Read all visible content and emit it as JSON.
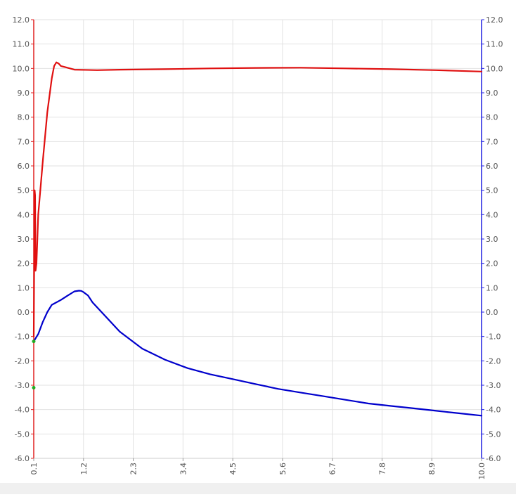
{
  "chart_data": {
    "type": "line",
    "title": "",
    "xlabel": "",
    "ylabel": "",
    "xlim": [
      0.1,
      10.0
    ],
    "ylim": [
      -6.0,
      12.0
    ],
    "y2lim": [
      -6.0,
      12.0
    ],
    "grid": true,
    "legend": "none",
    "x_ticks": [
      "0.1",
      "1.2",
      "2.3",
      "3.4",
      "4.5",
      "5.6",
      "6.7",
      "7.8",
      "8.9",
      "10.0"
    ],
    "y_ticks": [
      "12.0",
      "11.0",
      "10.0",
      "9.0",
      "8.0",
      "7.0",
      "6.0",
      "5.0",
      "4.0",
      "3.0",
      "2.0",
      "1.0",
      "0.0",
      "-1.0",
      "-2.0",
      "-3.0",
      "-4.0",
      "-5.0",
      "-6.0"
    ],
    "colors": {
      "left_axis": "#e02020",
      "right_axis": "#2020e0",
      "series_red": "#e01010",
      "series_blue": "#0000cc",
      "marker": "#22aa22",
      "grid": "#e2e2e2",
      "strip": "#f0f0f0"
    },
    "series": [
      {
        "axis": "left",
        "color": "#e01010",
        "x": [
          0.1,
          0.12,
          0.13,
          0.14,
          0.16,
          0.2,
          0.3,
          0.4,
          0.5,
          0.55,
          0.6,
          0.65,
          0.7,
          0.8,
          1.0,
          1.5,
          2.0,
          3.0,
          4.0,
          5.0,
          6.0,
          7.0,
          8.0,
          9.0,
          9.5,
          10.0
        ],
        "y": [
          -1.0,
          5.0,
          4.8,
          1.7,
          2.0,
          4.0,
          6.2,
          8.2,
          9.6,
          10.1,
          10.25,
          10.2,
          10.1,
          10.05,
          9.95,
          9.93,
          9.95,
          9.97,
          10.0,
          10.02,
          10.03,
          10.0,
          9.97,
          9.93,
          9.9,
          9.87
        ]
      },
      {
        "axis": "right",
        "color": "#0000cc",
        "x": [
          0.1,
          0.2,
          0.3,
          0.4,
          0.5,
          0.55,
          0.7,
          0.85,
          1.0,
          1.1,
          1.15,
          1.2,
          1.3,
          1.4,
          1.6,
          2.0,
          2.5,
          3.0,
          3.5,
          4.0,
          4.5,
          5.0,
          5.5,
          6.0,
          6.5,
          7.0,
          7.5,
          8.0,
          8.5,
          9.0,
          9.5,
          10.0
        ],
        "y": [
          -1.2,
          -0.9,
          -0.4,
          0.0,
          0.3,
          0.35,
          0.5,
          0.68,
          0.85,
          0.88,
          0.87,
          0.82,
          0.68,
          0.4,
          0.0,
          -0.8,
          -1.5,
          -1.95,
          -2.3,
          -2.55,
          -2.75,
          -2.95,
          -3.15,
          -3.3,
          -3.45,
          -3.6,
          -3.75,
          -3.85,
          -3.95,
          -4.05,
          -4.15,
          -4.25
        ]
      }
    ],
    "markers": [
      {
        "x": 0.1,
        "y": -1.2
      },
      {
        "x": 0.1,
        "y": -3.1
      }
    ]
  }
}
